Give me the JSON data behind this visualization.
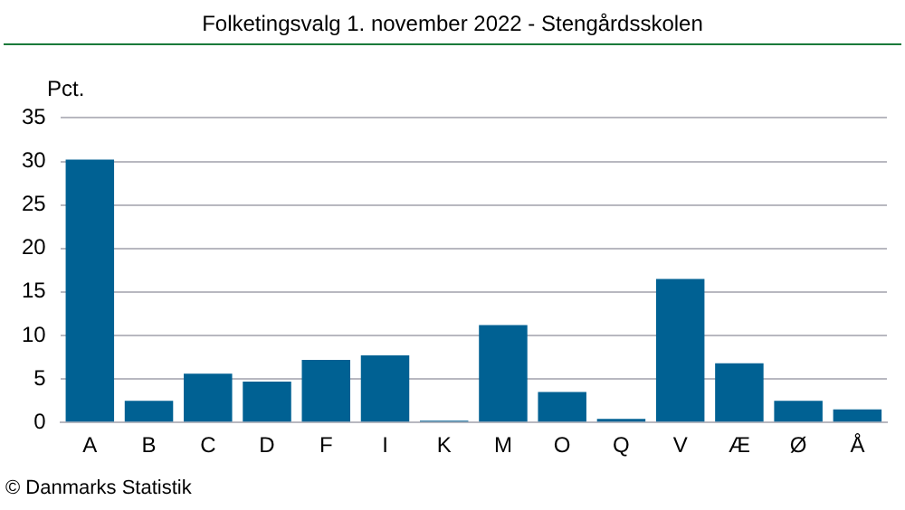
{
  "chart_data": {
    "type": "bar",
    "title": "Folketingsvalg 1. november 2022 - Stengårdsskolen",
    "ylabel": "Pct.",
    "categories": [
      "A",
      "B",
      "C",
      "D",
      "F",
      "I",
      "K",
      "M",
      "O",
      "Q",
      "V",
      "Æ",
      "Ø",
      "Å"
    ],
    "values": [
      30.2,
      2.5,
      5.6,
      4.7,
      7.2,
      7.7,
      0.2,
      11.2,
      3.5,
      0.4,
      16.5,
      6.8,
      2.5,
      1.5
    ],
    "color": "#006193",
    "ylim": [
      0,
      35
    ],
    "yticks": [
      0,
      5,
      10,
      15,
      20,
      25,
      30,
      35
    ],
    "grid": "y",
    "legend": false,
    "annotations": [
      "© Danmarks Statistik"
    ]
  }
}
